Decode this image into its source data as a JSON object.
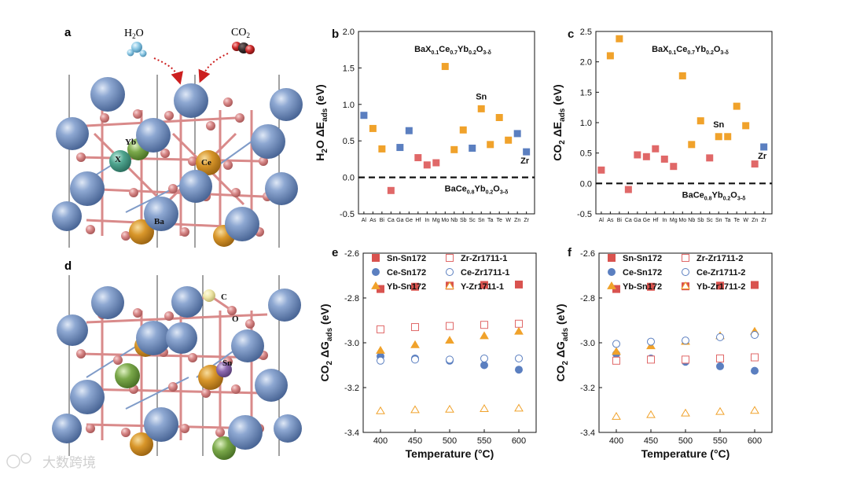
{
  "panels": {
    "a": {
      "letter": "a",
      "molecules": {
        "left": "H2O",
        "right": "CO2"
      },
      "atom_labels": [
        "Yb",
        "X",
        "Ce",
        "Ba"
      ]
    },
    "d": {
      "letter": "d",
      "atom_labels": [
        "C",
        "O",
        "Sn"
      ]
    }
  },
  "watermark": "大数跨境",
  "colors": {
    "sn": "#d9534f",
    "ce": "#5b7fc0",
    "yb": "#f0a22b",
    "zr": "#e06868",
    "y": "#f0a22b",
    "b_red": "#e06868",
    "b_blue": "#5b7fc0",
    "b_orange": "#f0a22b",
    "ba_atom": "#6f8cbf",
    "o_atom": "#d98a8a",
    "ce_atom": "#d8962a",
    "x_atom": "#4fa58f",
    "sn_atom": "#8e6ab0",
    "green_atom": "#7aa84a"
  },
  "chart_data": [
    {
      "id": "b",
      "letter": "b",
      "type": "scatter",
      "ylabel_main": "H",
      "ylabel_sub": "2",
      "ylabel_mid": "O ΔE",
      "ylabel_sub2": "ads",
      "ylabel_unit": " (eV)",
      "ylim": [
        -0.5,
        2.0
      ],
      "yticks": [
        "-0.5",
        "0.0",
        "0.5",
        "1.0",
        "1.5",
        "2.0"
      ],
      "categories": [
        "Al",
        "As",
        "Bi",
        "Ca",
        "Ga",
        "Ge",
        "Hf",
        "In",
        "Mg",
        "Mo",
        "Nb",
        "Sb",
        "Sc",
        "Sn",
        "Ta",
        "Te",
        "W",
        "Zn",
        "Zr"
      ],
      "values": [
        0.85,
        0.67,
        0.39,
        -0.18,
        0.41,
        0.64,
        0.27,
        0.17,
        0.2,
        1.52,
        0.38,
        0.65,
        0.4,
        0.94,
        0.45,
        0.82,
        0.51,
        0.6,
        0.35
      ],
      "point_colors": [
        "b_blue",
        "b_orange",
        "b_orange",
        "b_red",
        "b_blue",
        "b_blue",
        "b_red",
        "b_red",
        "b_red",
        "b_orange",
        "b_orange",
        "b_orange",
        "b_blue",
        "b_orange",
        "b_orange",
        "b_orange",
        "b_orange",
        "b_blue",
        "b_blue"
      ],
      "baseline": 0.0,
      "formula_top": {
        "a": "BaX",
        "b": "0.1",
        "c": "Ce",
        "d": "0.7",
        "e": "Yb",
        "f": "0.2",
        "g": "O",
        "h": "3-δ"
      },
      "formula_bottom": {
        "a": "BaCe",
        "b": "0.8",
        "c": "Yb",
        "d": "0.2",
        "e": "O",
        "f": "3-δ"
      },
      "annotations": [
        "Sn",
        "Zr"
      ]
    },
    {
      "id": "c",
      "letter": "c",
      "type": "scatter",
      "ylabel_main": "CO",
      "ylabel_sub": "2",
      "ylabel_mid": " ΔE",
      "ylabel_sub2": "ads",
      "ylabel_unit": " (eV)",
      "ylim": [
        -0.5,
        2.5
      ],
      "yticks": [
        "-0.5",
        "0.0",
        "0.5",
        "1.0",
        "1.5",
        "2.0",
        "2.5"
      ],
      "categories": [
        "Al",
        "As",
        "Bi",
        "Ca",
        "Ga",
        "Ge",
        "Hf",
        "In",
        "Mg",
        "Mo",
        "Nb",
        "Sb",
        "Sc",
        "Sn",
        "Ta",
        "Te",
        "W",
        "Zn",
        "Zr"
      ],
      "values": [
        0.22,
        2.1,
        2.38,
        -0.1,
        0.47,
        0.44,
        0.57,
        0.4,
        0.28,
        1.77,
        0.64,
        1.03,
        0.42,
        0.77,
        0.77,
        1.27,
        0.95,
        0.32,
        0.6
      ],
      "point_colors": [
        "b_red",
        "b_orange",
        "b_orange",
        "b_red",
        "b_red",
        "b_red",
        "b_red",
        "b_red",
        "b_red",
        "b_orange",
        "b_orange",
        "b_orange",
        "b_red",
        "b_orange",
        "b_orange",
        "b_orange",
        "b_orange",
        "b_red",
        "b_blue"
      ],
      "baseline": 0.0,
      "formula_top": {
        "a": "BaX",
        "b": "0.1",
        "c": "Ce",
        "d": "0.7",
        "e": "Yb",
        "f": "0.2",
        "g": "O",
        "h": "3-δ"
      },
      "formula_bottom": {
        "a": "BaCe",
        "b": "0.8",
        "c": "Yb",
        "d": "0.2",
        "e": "O",
        "f": "3-δ"
      },
      "annotations": [
        "Sn",
        "Zr"
      ]
    },
    {
      "id": "e",
      "letter": "e",
      "type": "scatter",
      "ylabel_main": "CO",
      "ylabel_sub": "2",
      "ylabel_mid": " ΔG",
      "ylabel_sub2": "ads",
      "ylabel_unit": " (eV)",
      "xlabel": "Temperature (°C)",
      "x": [
        400,
        450,
        500,
        550,
        600
      ],
      "xticks": [
        "400",
        "450",
        "500",
        "550",
        "600"
      ],
      "ylim": [
        -3.4,
        -2.6
      ],
      "yticks": [
        "-3.4",
        "-3.2",
        "-3.0",
        "-2.8",
        "-2.6"
      ],
      "series": [
        {
          "name": "Sn-Sn172",
          "marker": "square",
          "filled": true,
          "color": "sn",
          "values": [
            -2.76,
            -2.75,
            -2.745,
            -2.742,
            -2.74
          ]
        },
        {
          "name": "Ce-Sn172",
          "marker": "circle",
          "filled": true,
          "color": "ce",
          "values": [
            -3.06,
            -3.07,
            -3.08,
            -3.1,
            -3.12
          ]
        },
        {
          "name": "Yb-Sn172",
          "marker": "triangle",
          "filled": true,
          "color": "yb",
          "values": [
            -3.035,
            -3.01,
            -2.99,
            -2.97,
            -2.95
          ]
        },
        {
          "name": "Zr-Zr1711-1",
          "marker": "square",
          "filled": false,
          "color": "zr",
          "values": [
            -2.94,
            -2.93,
            -2.925,
            -2.92,
            -2.915
          ]
        },
        {
          "name": "Ce-Zr1711-1",
          "marker": "circle",
          "filled": false,
          "color": "ce",
          "values": [
            -3.08,
            -3.075,
            -3.075,
            -3.07,
            -3.07
          ]
        },
        {
          "name": "Y-Zr1711-1",
          "marker": "triangle",
          "filled": false,
          "color": "y",
          "values": [
            -3.305,
            -3.3,
            -3.298,
            -3.295,
            -3.293
          ]
        }
      ]
    },
    {
      "id": "f",
      "letter": "f",
      "type": "scatter",
      "ylabel_main": "CO",
      "ylabel_sub": "2",
      "ylabel_mid": " ΔG",
      "ylabel_sub2": "ads",
      "ylabel_unit": " (eV)",
      "xlabel": "Temperature (°C)",
      "x": [
        400,
        450,
        500,
        550,
        600
      ],
      "xticks": [
        "400",
        "450",
        "500",
        "550",
        "600"
      ],
      "ylim": [
        -3.4,
        -2.6
      ],
      "yticks": [
        "-3.4",
        "-3.2",
        "-3.0",
        "-2.8",
        "-2.6"
      ],
      "series": [
        {
          "name": "Sn-Sn172",
          "marker": "square",
          "filled": true,
          "color": "sn",
          "values": [
            -2.76,
            -2.75,
            -2.748,
            -2.745,
            -2.742
          ]
        },
        {
          "name": "Ce-Sn172",
          "marker": "circle",
          "filled": true,
          "color": "ce",
          "values": [
            -3.05,
            -3.07,
            -3.085,
            -3.105,
            -3.125
          ]
        },
        {
          "name": "Yb-Sn172",
          "marker": "triangle",
          "filled": true,
          "color": "yb",
          "values": [
            -3.04,
            -3.015,
            -2.995,
            -2.97,
            -2.95
          ]
        },
        {
          "name": "Zr-Zr1711-2",
          "marker": "square",
          "filled": false,
          "color": "zr",
          "values": [
            -3.08,
            -3.075,
            -3.075,
            -3.07,
            -3.065
          ]
        },
        {
          "name": "Ce-Zr1711-2",
          "marker": "circle",
          "filled": false,
          "color": "ce",
          "values": [
            -3.005,
            -2.995,
            -2.99,
            -2.975,
            -2.965
          ]
        },
        {
          "name": "Yb-Zr1711-2",
          "marker": "triangle",
          "filled": false,
          "color": "yb",
          "values": [
            -3.33,
            -3.322,
            -3.315,
            -3.308,
            -3.303
          ]
        }
      ]
    }
  ]
}
